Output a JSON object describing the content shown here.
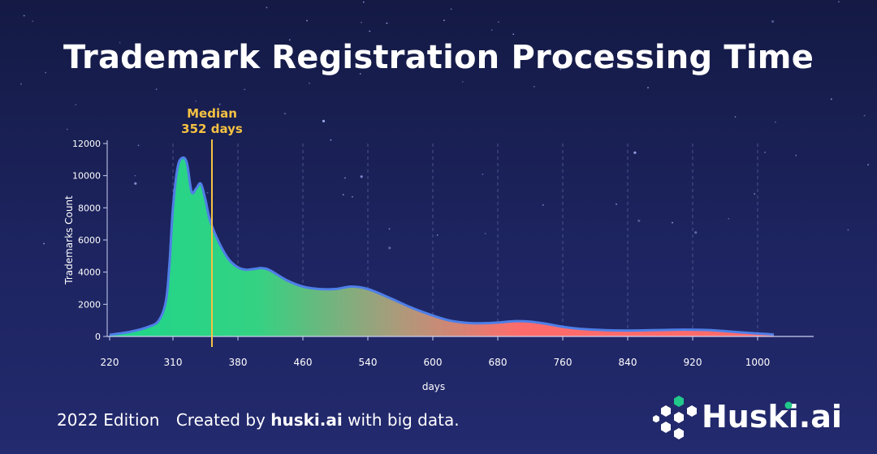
{
  "title": "Trademark Registration Processing Time",
  "footer": {
    "edition": "2022 Edition",
    "created_prefix": "Created by ",
    "brand": "huski.ai",
    "created_suffix": " with big data."
  },
  "logo": {
    "text": "Huski.ai",
    "icon": "hexagon-cluster-icon"
  },
  "colors": {
    "background_top": "#141a44",
    "background_bottom": "#232a6e",
    "curve_line": "#4f7fe8",
    "fill_start": "#1fd68a",
    "fill_end": "#ff6b6b",
    "median_line": "#f5c242",
    "logo_accent": "#22c88a"
  },
  "chart_data": {
    "type": "area",
    "xlabel": "days",
    "ylabel": "Trademarks Count",
    "x_ticks": [
      220,
      310,
      380,
      460,
      540,
      600,
      680,
      760,
      840,
      920,
      1000
    ],
    "y_ticks": [
      0,
      2000,
      4000,
      6000,
      8000,
      10000,
      12000
    ],
    "ylim": [
      0,
      12000
    ],
    "grid": "vertical dashed",
    "annotation": {
      "label_line1": "Median",
      "label_line2": "352 days",
      "x": 352
    },
    "points": [
      [
        220,
        100
      ],
      [
        250,
        300
      ],
      [
        275,
        600
      ],
      [
        290,
        1000
      ],
      [
        300,
        2200
      ],
      [
        305,
        4500
      ],
      [
        310,
        8000
      ],
      [
        315,
        10500
      ],
      [
        320,
        11100
      ],
      [
        325,
        10800
      ],
      [
        330,
        9000
      ],
      [
        335,
        9200
      ],
      [
        340,
        9500
      ],
      [
        345,
        8500
      ],
      [
        350,
        7200
      ],
      [
        360,
        5800
      ],
      [
        370,
        4800
      ],
      [
        380,
        4300
      ],
      [
        390,
        4150
      ],
      [
        400,
        4200
      ],
      [
        410,
        4250
      ],
      [
        420,
        4100
      ],
      [
        440,
        3500
      ],
      [
        460,
        3100
      ],
      [
        480,
        2950
      ],
      [
        500,
        2950
      ],
      [
        520,
        3100
      ],
      [
        540,
        2950
      ],
      [
        560,
        2400
      ],
      [
        580,
        1800
      ],
      [
        600,
        1300
      ],
      [
        620,
        1000
      ],
      [
        640,
        850
      ],
      [
        660,
        820
      ],
      [
        680,
        860
      ],
      [
        700,
        950
      ],
      [
        720,
        920
      ],
      [
        740,
        780
      ],
      [
        760,
        600
      ],
      [
        780,
        480
      ],
      [
        800,
        420
      ],
      [
        820,
        380
      ],
      [
        840,
        370
      ],
      [
        860,
        380
      ],
      [
        880,
        400
      ],
      [
        900,
        420
      ],
      [
        920,
        420
      ],
      [
        940,
        400
      ],
      [
        960,
        330
      ],
      [
        980,
        250
      ],
      [
        1000,
        180
      ],
      [
        1020,
        120
      ]
    ]
  }
}
